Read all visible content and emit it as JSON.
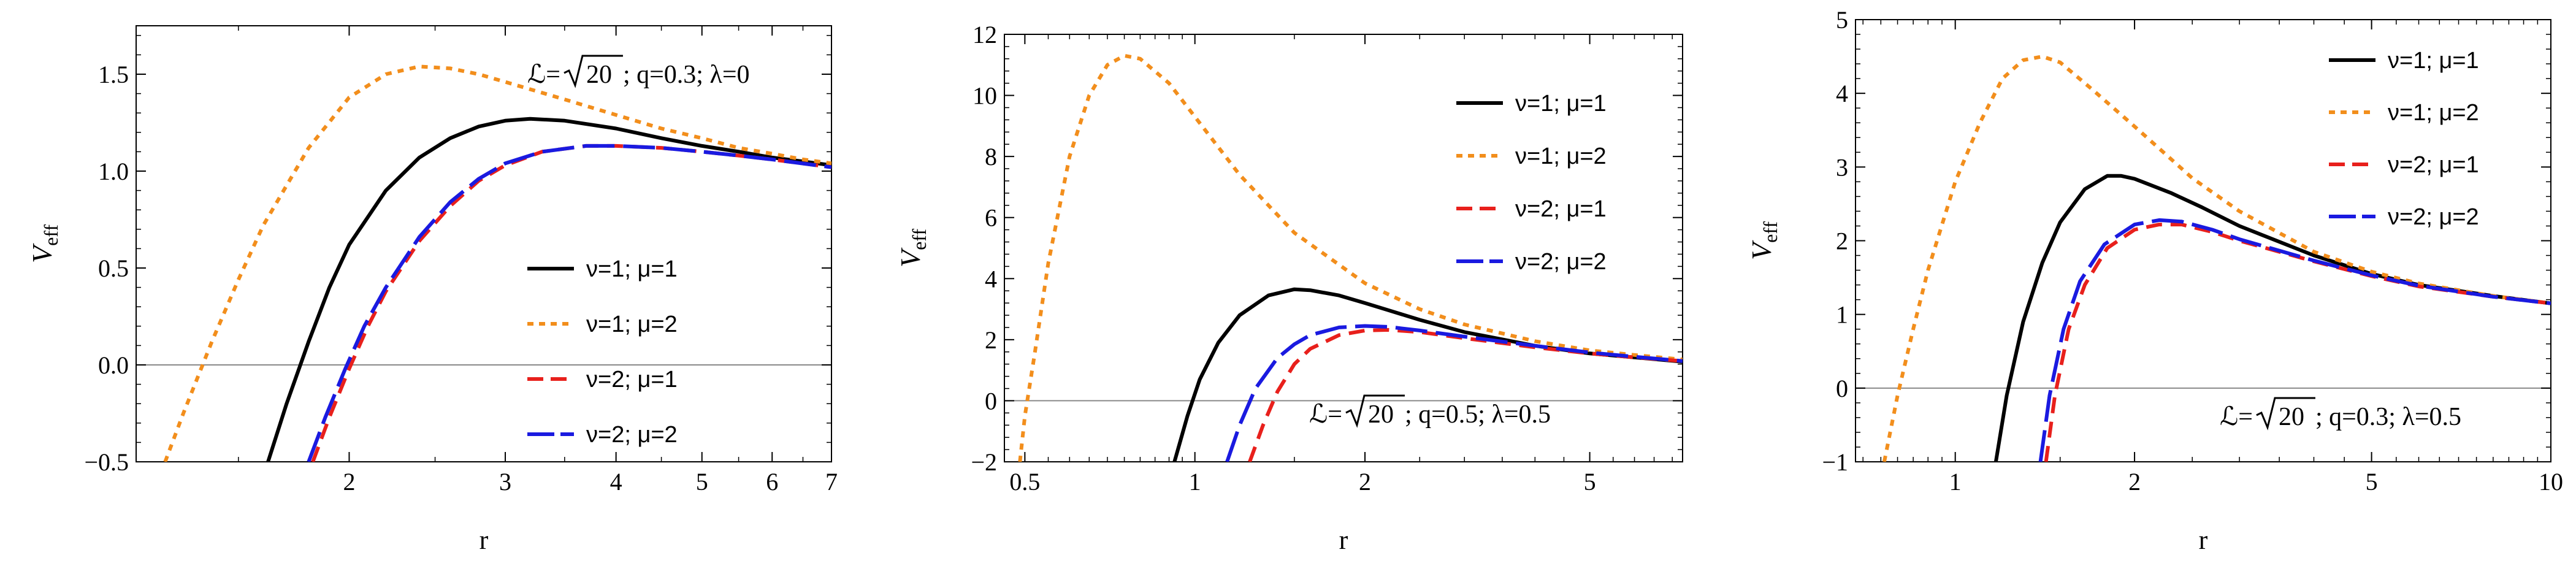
{
  "chart_data": [
    {
      "type": "line",
      "xlabel": "r",
      "ylabel": "V",
      "ylabel_sub": "eff",
      "x_scale": "log",
      "xlim": [
        1.15,
        7
      ],
      "ylim": [
        -0.5,
        1.75
      ],
      "xticks": [
        2,
        3,
        4,
        5,
        6,
        7
      ],
      "yticks": [
        -0.5,
        0.0,
        0.5,
        1.0,
        1.5
      ],
      "ytick_labels": [
        "−0.5",
        "0.0",
        "0.5",
        "1.0",
        "1.5"
      ],
      "reference_line_y": 0,
      "annotation": {
        "pre": "ℒ= ",
        "radicand": "20",
        "post": " ; q=0.3; λ=0"
      },
      "legend_position": "center-right",
      "series": [
        {
          "name": "ν=1; μ=1",
          "color": "#000000",
          "style": "solid",
          "x": [
            1.62,
            1.7,
            1.8,
            1.9,
            2.0,
            2.2,
            2.4,
            2.6,
            2.8,
            3.0,
            3.2,
            3.5,
            4.0,
            4.5,
            5.0,
            5.5,
            6.0,
            6.5,
            7.0
          ],
          "y": [
            -0.5,
            -0.2,
            0.12,
            0.4,
            0.62,
            0.9,
            1.07,
            1.17,
            1.23,
            1.26,
            1.27,
            1.26,
            1.22,
            1.17,
            1.13,
            1.1,
            1.07,
            1.05,
            1.03
          ]
        },
        {
          "name": "ν=1; μ=2",
          "color": "#f28e1c",
          "style": "dotted",
          "x": [
            1.24,
            1.3,
            1.4,
            1.5,
            1.6,
            1.8,
            2.0,
            2.2,
            2.4,
            2.6,
            2.8,
            3.0,
            3.5,
            4.0,
            4.5,
            5.0,
            5.5,
            6.0,
            6.5,
            7.0
          ],
          "y": [
            -0.5,
            -0.25,
            0.12,
            0.44,
            0.72,
            1.12,
            1.38,
            1.5,
            1.54,
            1.53,
            1.5,
            1.46,
            1.37,
            1.29,
            1.22,
            1.17,
            1.12,
            1.09,
            1.06,
            1.04
          ]
        },
        {
          "name": "ν=2; μ=1",
          "color": "#e8201c",
          "style": "short-dash",
          "x": [
            1.82,
            1.9,
            2.0,
            2.1,
            2.2,
            2.4,
            2.6,
            2.8,
            3.0,
            3.3,
            3.7,
            4.0,
            4.5,
            5.0,
            5.5,
            6.0,
            7.0
          ],
          "y": [
            -0.5,
            -0.27,
            -0.02,
            0.2,
            0.38,
            0.64,
            0.82,
            0.95,
            1.03,
            1.1,
            1.13,
            1.13,
            1.12,
            1.1,
            1.08,
            1.06,
            1.02
          ]
        },
        {
          "name": "ν=2; μ=2",
          "color": "#1a1ae0",
          "style": "long-dash",
          "x": [
            1.8,
            1.88,
            1.98,
            2.08,
            2.2,
            2.4,
            2.6,
            2.8,
            3.0,
            3.3,
            3.7,
            4.0,
            4.5,
            5.0,
            5.5,
            6.0,
            7.0
          ],
          "y": [
            -0.5,
            -0.27,
            -0.02,
            0.2,
            0.4,
            0.66,
            0.84,
            0.96,
            1.04,
            1.1,
            1.13,
            1.13,
            1.12,
            1.1,
            1.08,
            1.06,
            1.02
          ]
        }
      ]
    },
    {
      "type": "line",
      "xlabel": "r",
      "ylabel": "V",
      "ylabel_sub": "eff",
      "x_scale": "log",
      "xlim": [
        0.46,
        7.3
      ],
      "ylim": [
        -2,
        12
      ],
      "xticks": [
        0.5,
        1,
        2,
        5
      ],
      "yticks": [
        -2,
        0,
        2,
        4,
        6,
        8,
        10,
        12
      ],
      "ytick_labels": [
        "−2",
        "0",
        "2",
        "4",
        "6",
        "8",
        "10",
        "12"
      ],
      "reference_line_y": 0,
      "annotation": {
        "pre": "ℒ= ",
        "radicand": "20",
        "post": " ; q=0.5; λ=0.5"
      },
      "legend_position": "top-right",
      "series": [
        {
          "name": "ν=1; μ=1",
          "color": "#000000",
          "style": "solid",
          "x": [
            0.92,
            0.97,
            1.02,
            1.1,
            1.2,
            1.35,
            1.5,
            1.6,
            1.8,
            2.0,
            2.5,
            3.0,
            4.0,
            5.0,
            6.0,
            7.3
          ],
          "y": [
            -2,
            -0.5,
            0.7,
            1.9,
            2.8,
            3.45,
            3.65,
            3.62,
            3.45,
            3.2,
            2.65,
            2.25,
            1.8,
            1.55,
            1.42,
            1.28
          ]
        },
        {
          "name": "ν=1; μ=2",
          "color": "#f28e1c",
          "style": "dotted",
          "x": [
            0.49,
            0.5,
            0.52,
            0.55,
            0.6,
            0.65,
            0.7,
            0.75,
            0.8,
            0.9,
            1.0,
            1.2,
            1.5,
            2.0,
            2.5,
            3.0,
            4.0,
            5.0,
            6.0,
            7.3
          ],
          "y": [
            -2,
            -0.5,
            1.5,
            4.5,
            8.0,
            10.0,
            11.0,
            11.3,
            11.2,
            10.4,
            9.3,
            7.4,
            5.5,
            3.85,
            3.0,
            2.5,
            1.95,
            1.65,
            1.5,
            1.35
          ]
        },
        {
          "name": "ν=2; μ=1",
          "color": "#e8201c",
          "style": "short-dash",
          "x": [
            1.25,
            1.32,
            1.4,
            1.5,
            1.6,
            1.8,
            2.0,
            2.2,
            2.5,
            3.0,
            4.0,
            5.0,
            6.0,
            7.3
          ],
          "y": [
            -2,
            -0.8,
            0.3,
            1.2,
            1.7,
            2.15,
            2.3,
            2.32,
            2.25,
            2.05,
            1.75,
            1.55,
            1.42,
            1.3
          ]
        },
        {
          "name": "ν=2; μ=2",
          "color": "#1a1ae0",
          "style": "long-dash",
          "x": [
            1.14,
            1.2,
            1.28,
            1.4,
            1.5,
            1.6,
            1.8,
            2.0,
            2.2,
            2.5,
            3.0,
            4.0,
            5.0,
            6.0,
            7.3
          ],
          "y": [
            -2,
            -0.8,
            0.4,
            1.4,
            1.85,
            2.15,
            2.4,
            2.45,
            2.42,
            2.3,
            2.1,
            1.8,
            1.58,
            1.44,
            1.3
          ]
        }
      ]
    },
    {
      "type": "line",
      "xlabel": "r",
      "ylabel": "V",
      "ylabel_sub": "eff",
      "x_scale": "log",
      "xlim": [
        0.68,
        10
      ],
      "ylim": [
        -1,
        5
      ],
      "xticks": [
        1,
        2,
        5,
        10
      ],
      "yticks": [
        -1,
        0,
        1,
        2,
        3,
        4,
        5
      ],
      "ytick_labels": [
        "−1",
        "0",
        "1",
        "2",
        "3",
        "4",
        "5"
      ],
      "reference_line_y": 0,
      "annotation": {
        "pre": "ℒ= ",
        "radicand": "20",
        "post": " ; q=0.3; λ=0.5"
      },
      "legend_position": "top-right",
      "series": [
        {
          "name": "ν=1; μ=1",
          "color": "#000000",
          "style": "solid",
          "x": [
            1.17,
            1.22,
            1.3,
            1.4,
            1.5,
            1.65,
            1.8,
            1.9,
            2.0,
            2.3,
            2.6,
            3.0,
            4.0,
            5.0,
            6.0,
            8.0,
            10.0
          ],
          "y": [
            -1,
            -0.1,
            0.9,
            1.7,
            2.25,
            2.7,
            2.88,
            2.88,
            2.84,
            2.65,
            2.45,
            2.2,
            1.8,
            1.55,
            1.4,
            1.25,
            1.15
          ]
        },
        {
          "name": "ν=1; μ=2",
          "color": "#f28e1c",
          "style": "dotted",
          "x": [
            0.76,
            0.8,
            0.85,
            0.9,
            1.0,
            1.1,
            1.2,
            1.3,
            1.4,
            1.5,
            1.7,
            2.0,
            2.5,
            3.0,
            4.0,
            5.0,
            6.0,
            8.0,
            10.0
          ],
          "y": [
            -1,
            -0.1,
            0.8,
            1.6,
            2.8,
            3.6,
            4.2,
            4.45,
            4.5,
            4.42,
            4.05,
            3.55,
            2.85,
            2.4,
            1.85,
            1.58,
            1.42,
            1.25,
            1.15
          ]
        },
        {
          "name": "ν=2; μ=1",
          "color": "#e8201c",
          "style": "short-dash",
          "x": [
            1.42,
            1.47,
            1.55,
            1.65,
            1.8,
            2.0,
            2.2,
            2.4,
            2.7,
            3.0,
            4.0,
            5.0,
            6.0,
            8.0,
            10.0
          ],
          "y": [
            -1,
            -0.1,
            0.8,
            1.4,
            1.9,
            2.15,
            2.22,
            2.22,
            2.12,
            2.0,
            1.72,
            1.52,
            1.38,
            1.24,
            1.15
          ]
        },
        {
          "name": "ν=2; μ=2",
          "color": "#1a1ae0",
          "style": "long-dash",
          "x": [
            1.39,
            1.44,
            1.52,
            1.62,
            1.78,
            2.0,
            2.2,
            2.4,
            2.7,
            3.0,
            4.0,
            5.0,
            6.0,
            8.0,
            10.0
          ],
          "y": [
            -1,
            -0.1,
            0.8,
            1.45,
            1.95,
            2.22,
            2.28,
            2.26,
            2.15,
            2.02,
            1.73,
            1.53,
            1.39,
            1.24,
            1.15
          ]
        }
      ]
    }
  ]
}
